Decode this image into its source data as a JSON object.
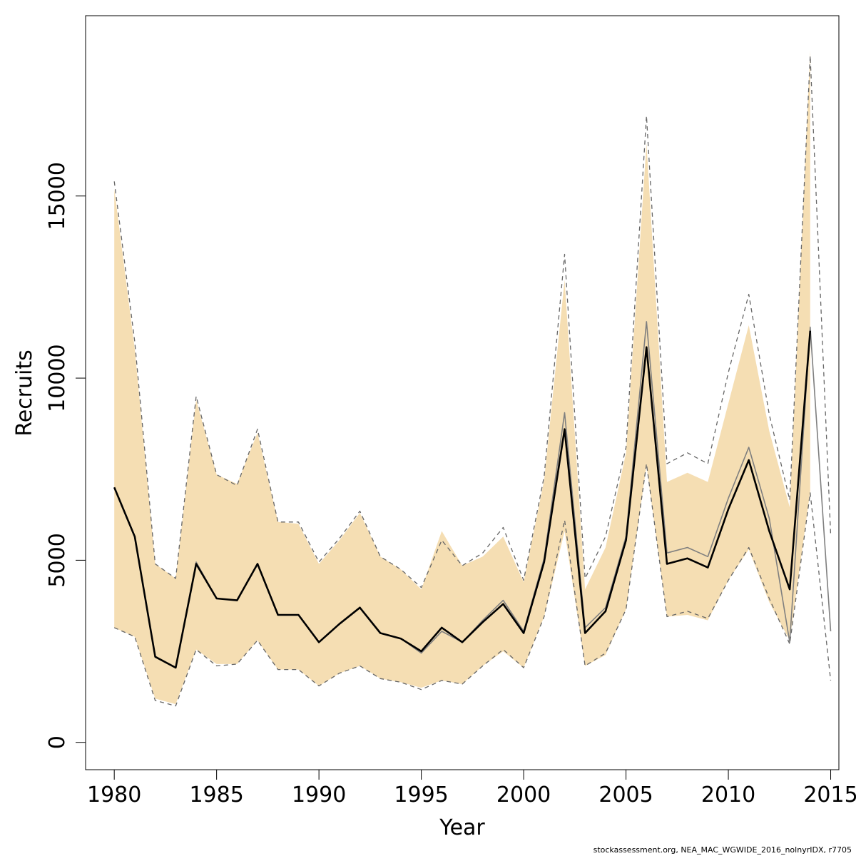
{
  "chart_data": {
    "type": "line",
    "xlabel": "Year",
    "ylabel": "Recruits",
    "xlim": [
      1978.6,
      2015.4
    ],
    "ylim": [
      -750,
      19950
    ],
    "xticks": [
      1980,
      1985,
      1990,
      1995,
      2000,
      2005,
      2010,
      2015
    ],
    "yticks": [
      0,
      5000,
      10000,
      15000
    ],
    "colors": {
      "band": "#f5deb3",
      "estimate": "#000000",
      "comparison": "#7f7f7f",
      "comparison_ci": "#666666"
    },
    "band": {
      "x": [
        1980,
        1981,
        1982,
        1983,
        1984,
        1985,
        1986,
        1987,
        1988,
        1989,
        1990,
        1991,
        1992,
        1993,
        1994,
        1995,
        1996,
        1997,
        1998,
        1999,
        2000,
        2001,
        2002,
        2003,
        2004,
        2005,
        2006,
        2007,
        2008,
        2009,
        2010,
        2011,
        2012,
        2013,
        2014
      ],
      "lower": [
        3150,
        2900,
        1200,
        1050,
        2550,
        2150,
        2150,
        2800,
        2000,
        2000,
        1550,
        1900,
        2100,
        1750,
        1650,
        1500,
        1700,
        1600,
        2100,
        2500,
        2050,
        3450,
        5800,
        2100,
        2400,
        3650,
        7600,
        3450,
        3500,
        3350,
        4450,
        5300,
        3850,
        2800,
        6900
      ],
      "upper": [
        15200,
        10800,
        4900,
        4500,
        9400,
        7350,
        7100,
        8500,
        6050,
        6000,
        4900,
        5550,
        6300,
        5100,
        4750,
        4200,
        5800,
        4850,
        5100,
        5650,
        4400,
        7200,
        12700,
        4200,
        5350,
        7950,
        16450,
        7150,
        7400,
        7150,
        9300,
        11450,
        8550,
        6450,
        19000
      ]
    },
    "series": [
      {
        "x": [
          1980,
          1981,
          1982,
          1983,
          1984,
          1985,
          1986,
          1987,
          1988,
          1989,
          1990,
          1991,
          1992,
          1993,
          1994,
          1995,
          1996,
          1997,
          1998,
          1999,
          2000,
          2001,
          2002,
          2003,
          2004,
          2005,
          2006,
          2007,
          2008,
          2009,
          2010,
          2011,
          2012,
          2013,
          2014
        ],
        "values": [
          7000,
          5650,
          2350,
          2050,
          4900,
          3950,
          3900,
          4900,
          3500,
          3500,
          2750,
          3250,
          3700,
          3000,
          2850,
          2500,
          3150,
          2750,
          3300,
          3800,
          3000,
          4950,
          8600,
          3000,
          3600,
          5550,
          10850,
          4900,
          5050,
          4800,
          6400,
          7750,
          5800,
          4200,
          11300
        ]
      },
      {
        "x": [
          1980,
          1981,
          1982,
          1983,
          1984,
          1985,
          1986,
          1987,
          1988,
          1989,
          1990,
          1991,
          1992,
          1993,
          1994,
          1995,
          1996,
          1997,
          1998,
          1999,
          2000,
          2001,
          2002,
          2003,
          2004,
          2005,
          2006,
          2007,
          2008,
          2009,
          2010,
          2011,
          2012,
          2013,
          2014,
          2015
        ],
        "values": [
          7000,
          5650,
          2350,
          2050,
          4950,
          3950,
          3900,
          4900,
          3500,
          3500,
          2750,
          3250,
          3700,
          3000,
          2850,
          2450,
          3050,
          2750,
          3350,
          3900,
          3050,
          5050,
          9050,
          3150,
          3700,
          5650,
          11550,
          5200,
          5350,
          5100,
          6700,
          8100,
          6150,
          2750,
          11400,
          3050
        ]
      },
      {
        "x": [
          1980,
          1981,
          1982,
          1983,
          1984,
          1985,
          1986,
          1987,
          1988,
          1989,
          1990,
          1991,
          1992,
          1993,
          1994,
          1995,
          1996,
          1997,
          1998,
          1999,
          2000,
          2001,
          2002,
          2003,
          2004,
          2005,
          2006,
          2007,
          2008,
          2009,
          2010,
          2011,
          2012,
          2013,
          2014,
          2015
        ],
        "values": [
          15400,
          11000,
          4900,
          4500,
          9500,
          7350,
          7050,
          8600,
          6050,
          6050,
          4950,
          5600,
          6350,
          5100,
          4750,
          4250,
          5550,
          4850,
          5200,
          5900,
          4450,
          7300,
          13400,
          4500,
          5650,
          8100,
          17200,
          7650,
          7950,
          7650,
          10150,
          12300,
          9000,
          6650,
          18850,
          5700
        ]
      },
      {
        "x": [
          1980,
          1981,
          1982,
          1983,
          1984,
          1985,
          1986,
          1987,
          1988,
          1989,
          1990,
          1991,
          1992,
          1993,
          1994,
          1995,
          1996,
          1997,
          1998,
          1999,
          2000,
          2001,
          2002,
          2003,
          2004,
          2005,
          2006,
          2007,
          2008,
          2009,
          2010,
          2011,
          2012,
          2013,
          2014,
          2015
        ],
        "values": [
          3150,
          2900,
          1150,
          1000,
          2550,
          2100,
          2150,
          2800,
          2000,
          2000,
          1550,
          1900,
          2100,
          1750,
          1650,
          1450,
          1700,
          1600,
          2100,
          2550,
          2050,
          3450,
          6100,
          2100,
          2450,
          3650,
          7650,
          3450,
          3600,
          3400,
          4450,
          5350,
          3950,
          2700,
          6850,
          1700
        ]
      }
    ]
  },
  "footer": {
    "note": "stockassessment.org, NEA_MAC_WGWIDE_2016_nolnyrIDX, r7705"
  }
}
